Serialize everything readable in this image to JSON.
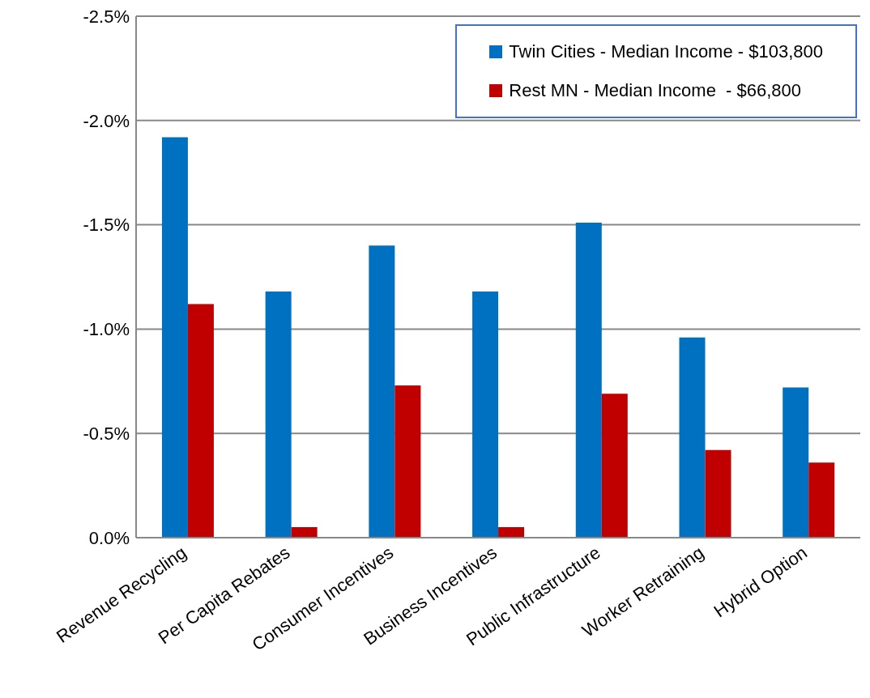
{
  "chart_data": {
    "type": "bar",
    "categories": [
      "Revenue Recycling",
      "Per Capita Rebates",
      "Consumer Incentives",
      "Business Incentives",
      "Public Infrastructure",
      "Worker Retraining",
      "Hybrid Option"
    ],
    "series": [
      {
        "name": "Twin Cities - Median Income - $103,800",
        "color": "#0070c0",
        "values": [
          -1.92,
          -1.18,
          -1.4,
          -1.18,
          -1.51,
          -0.96,
          -0.72
        ]
      },
      {
        "name": "Rest MN - Median Income  - $66,800",
        "color": "#c00000",
        "values": [
          -1.12,
          -0.05,
          -0.73,
          -0.05,
          -0.69,
          -0.42,
          -0.36
        ]
      }
    ],
    "ylim": [
      0,
      -2.5
    ],
    "yticks": [
      {
        "value": -2.5,
        "label": "-2.5%"
      },
      {
        "value": -2,
        "label": "-2.0%"
      },
      {
        "value": -1.5,
        "label": "-1.5%"
      },
      {
        "value": -1,
        "label": "-1.0%"
      },
      {
        "value": -0.5,
        "label": "-0.5%"
      },
      {
        "value": 0,
        "label": "0.0%"
      }
    ],
    "grid": "y",
    "legend": "top right"
  }
}
